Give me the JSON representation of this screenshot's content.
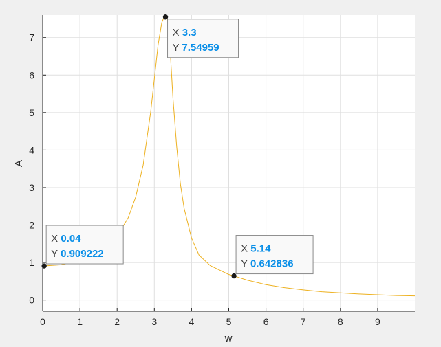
{
  "chart_data": {
    "type": "line",
    "xlabel": "w",
    "ylabel": "A",
    "xlim": [
      0,
      10
    ],
    "ylim": [
      -0.3,
      7.6
    ],
    "xticks": [
      0,
      1,
      2,
      3,
      4,
      5,
      6,
      7,
      8,
      9
    ],
    "yticks": [
      0,
      1,
      2,
      3,
      4,
      5,
      6,
      7
    ],
    "grid": true,
    "series": [
      {
        "color": "#edb120",
        "x": [
          0.04,
          0.5,
          1.0,
          1.5,
          2.0,
          2.3,
          2.5,
          2.7,
          2.9,
          3.0,
          3.1,
          3.2,
          3.25,
          3.3,
          3.35,
          3.4,
          3.5,
          3.6,
          3.7,
          3.8,
          4.0,
          4.2,
          4.5,
          5.0,
          5.14,
          5.5,
          6.0,
          6.5,
          7.0,
          7.5,
          8.0,
          8.5,
          9.0,
          9.5,
          10.0
        ],
        "y": [
          0.909222,
          0.94,
          1.04,
          1.25,
          1.7,
          2.2,
          2.75,
          3.6,
          5.0,
          5.9,
          6.8,
          7.4,
          7.52,
          7.54959,
          7.5,
          7.1,
          5.4,
          4.1,
          3.1,
          2.45,
          1.65,
          1.2,
          0.92,
          0.68,
          0.642836,
          0.53,
          0.41,
          0.33,
          0.27,
          0.22,
          0.19,
          0.16,
          0.14,
          0.12,
          0.11
        ]
      }
    ],
    "datatips": [
      {
        "x": 0.04,
        "y": 0.909222,
        "x_label": "X",
        "y_label": "Y",
        "x_value": "0.04",
        "y_value": "0.909222",
        "placement": "upper-right"
      },
      {
        "x": 3.3,
        "y": 7.54959,
        "x_label": "X",
        "y_label": "Y",
        "x_value": "3.3",
        "y_value": "7.54959",
        "placement": "lower-right"
      },
      {
        "x": 5.14,
        "y": 0.642836,
        "x_label": "X",
        "y_label": "Y",
        "x_value": "5.14",
        "y_value": "0.642836",
        "placement": "upper-right"
      }
    ],
    "colors": {
      "figure_background": "#f0f0f0",
      "axes_background": "#ffffff",
      "grid": "#dfdfdf",
      "axis": "#262626",
      "datatip_value": "#0a8fe8"
    }
  }
}
